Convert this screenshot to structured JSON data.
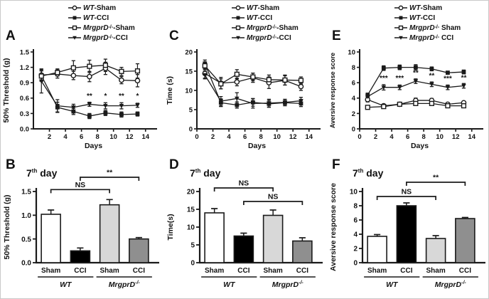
{
  "styles": {
    "axis_color": "#1a1a1a",
    "text_color": "#111111",
    "background": "#ffffff"
  },
  "chart_data": [
    {
      "id": "A",
      "panel_label": "A",
      "type": "line",
      "xlabel": "Days",
      "ylabel": "50% Threshold (g)",
      "xlim": [
        0,
        15
      ],
      "ylim": [
        0,
        1.5
      ],
      "xticks": [
        2,
        4,
        6,
        8,
        10,
        12,
        14
      ],
      "yticks": [
        0,
        0.3,
        0.6,
        0.9,
        1.2,
        1.5
      ],
      "ytick_labels": [
        "0.0",
        "0.3",
        "0.6",
        "0.9",
        "1.2",
        "1.5"
      ],
      "x": [
        1,
        3,
        5,
        7,
        9,
        11,
        13
      ],
      "legend": [
        {
          "gene": "WT",
          "sup": "",
          "sep": "-",
          "label": "Sham",
          "marker": "circle-open"
        },
        {
          "gene": "WT",
          "sup": "",
          "sep": "-",
          "label": "CCI",
          "marker": "square-filled"
        },
        {
          "gene": "MrgprD",
          "sup": "-/-",
          "sep": "-",
          "label": "Sham",
          "marker": "square-open"
        },
        {
          "gene": "MrgprD",
          "sup": "-/-",
          "sep": "-",
          "label": "CCI",
          "marker": "triangle-filled"
        }
      ],
      "series": [
        {
          "name": "WT-Sham",
          "marker": "circle-open",
          "values": [
            1.05,
            1.07,
            1.04,
            1.02,
            1.18,
            0.95,
            0.94
          ],
          "errors": [
            0.12,
            0.08,
            0.08,
            0.1,
            0.12,
            0.07,
            0.12
          ]
        },
        {
          "name": "WT-CCI",
          "marker": "square-filled",
          "values": [
            1.04,
            0.42,
            0.34,
            0.25,
            0.31,
            0.28,
            0.29
          ],
          "errors": [
            0.1,
            0.1,
            0.06,
            0.05,
            0.05,
            0.05,
            0.04
          ]
        },
        {
          "name": "MrgprD-/--Sham",
          "marker": "square-open",
          "values": [
            1.03,
            1.1,
            1.19,
            1.22,
            1.24,
            1.12,
            1.13
          ],
          "errors": [
            0.1,
            0.07,
            0.14,
            0.12,
            0.12,
            0.08,
            0.14
          ]
        },
        {
          "name": "MrgprD-/--CCI",
          "marker": "triangle-filled",
          "values": [
            0.93,
            0.45,
            0.42,
            0.48,
            0.45,
            0.45,
            0.46
          ],
          "errors": [
            0.23,
            0.12,
            0.06,
            0.04,
            0.06,
            0.06,
            0.04
          ]
        }
      ],
      "annotations": [
        {
          "x": 7,
          "y": 0.6,
          "text": "**"
        },
        {
          "x": 9,
          "y": 0.6,
          "text": "*"
        },
        {
          "x": 11,
          "y": 0.6,
          "text": "**"
        },
        {
          "x": 13,
          "y": 0.6,
          "text": "*"
        }
      ]
    },
    {
      "id": "C",
      "panel_label": "C",
      "type": "line",
      "xlabel": "Days",
      "ylabel": "Time (s)",
      "xlim": [
        0,
        15
      ],
      "ylim": [
        0,
        20
      ],
      "xticks": [
        0,
        2,
        4,
        6,
        8,
        10,
        12,
        14
      ],
      "yticks": [
        0,
        5,
        10,
        15,
        20
      ],
      "ytick_labels": [
        "0",
        "5",
        "10",
        "15",
        "20"
      ],
      "x": [
        1,
        3,
        5,
        7,
        9,
        11,
        13
      ],
      "legend": [
        {
          "gene": "WT",
          "sup": "",
          "sep": "-",
          "label": "Sham",
          "marker": "circle-open"
        },
        {
          "gene": "WT",
          "sup": "",
          "sep": "-",
          "label": "CCI",
          "marker": "square-filled"
        },
        {
          "gene": "MrgprD",
          "sup": "-/-",
          "sep": "-",
          "label": "Sham",
          "marker": "square-open"
        },
        {
          "gene": "MrgprD",
          "sup": "-/-",
          "sep": "-",
          "label": "CCI",
          "marker": "triangle-filled"
        }
      ],
      "series": [
        {
          "name": "WT-Sham",
          "marker": "circle-open",
          "values": [
            14.4,
            11.9,
            12.2,
            13.3,
            12.0,
            12.6,
            11.0
          ],
          "errors": [
            1.2,
            1.5,
            1.0,
            1.2,
            1.5,
            1.2,
            1.0
          ]
        },
        {
          "name": "WT-CCI",
          "marker": "square-filled",
          "values": [
            17.0,
            6.8,
            6.2,
            6.9,
            6.5,
            6.8,
            6.6
          ],
          "errors": [
            0.9,
            1.0,
            0.8,
            1.0,
            0.9,
            0.8,
            0.8
          ]
        },
        {
          "name": "MrgprD-/--Sham",
          "marker": "square-open",
          "values": [
            16.4,
            11.7,
            14.2,
            13.5,
            12.8,
            12.7,
            12.6
          ],
          "errors": [
            1.0,
            1.3,
            1.2,
            1.0,
            1.2,
            1.3,
            0.9
          ]
        },
        {
          "name": "MrgprD-/--CCI",
          "marker": "triangle-filled",
          "values": [
            14.0,
            7.2,
            7.9,
            6.6,
            6.7,
            6.9,
            7.3
          ],
          "errors": [
            1.0,
            1.2,
            1.5,
            1.2,
            1.0,
            0.8,
            0.9
          ]
        }
      ],
      "annotations": []
    },
    {
      "id": "E",
      "panel_label": "E",
      "type": "line",
      "xlabel": "Days",
      "ylabel": "Aversive response score",
      "xlim": [
        0,
        15
      ],
      "ylim": [
        0,
        10
      ],
      "xticks": [
        0,
        2,
        4,
        6,
        8,
        10,
        12,
        14
      ],
      "yticks": [
        0,
        2,
        4,
        6,
        8,
        10
      ],
      "ytick_labels": [
        "0",
        "2",
        "4",
        "6",
        "8",
        "10"
      ],
      "x": [
        1,
        3,
        5,
        7,
        9,
        11,
        13
      ],
      "legend": [
        {
          "gene": "WT",
          "sup": "",
          "sep": "-",
          "label": "Sham",
          "marker": "circle-open"
        },
        {
          "gene": "WT",
          "sup": "",
          "sep": "-",
          "label": "CCI",
          "marker": "square-filled"
        },
        {
          "gene": "MrgprD",
          "sup": "-/-",
          "sep": " ",
          "label": "Sham",
          "marker": "square-open"
        },
        {
          "gene": "MrgprD",
          "sup": "-/-",
          "sep": " ",
          "label": "CCI",
          "marker": "triangle-filled"
        }
      ],
      "series": [
        {
          "name": "WT-Sham",
          "marker": "circle-open",
          "values": [
            3.8,
            3.0,
            3.2,
            3.7,
            3.7,
            3.2,
            3.4
          ],
          "errors": [
            0.3,
            0.2,
            0.2,
            0.3,
            0.25,
            0.2,
            0.2
          ]
        },
        {
          "name": "WT-CCI",
          "marker": "square-filled",
          "values": [
            4.4,
            7.9,
            8.0,
            8.0,
            7.8,
            7.3,
            7.4
          ],
          "errors": [
            0.25,
            0.3,
            0.3,
            0.35,
            0.25,
            0.2,
            0.25
          ]
        },
        {
          "name": "MrgprD-/- Sham",
          "marker": "square-open",
          "values": [
            2.8,
            2.9,
            3.2,
            3.3,
            3.3,
            3.0,
            3.0
          ],
          "errors": [
            0.15,
            0.2,
            0.2,
            0.25,
            0.2,
            0.2,
            0.2
          ]
        },
        {
          "name": "MrgprD-/- CCI",
          "marker": "triangle-filled",
          "values": [
            4.2,
            5.4,
            5.4,
            6.2,
            5.8,
            5.4,
            5.6
          ],
          "errors": [
            0.3,
            0.35,
            0.3,
            0.3,
            0.3,
            0.3,
            0.3
          ]
        }
      ],
      "annotations": [
        {
          "x": 3,
          "y": 6.3,
          "text": "***"
        },
        {
          "x": 5,
          "y": 6.3,
          "text": "***"
        },
        {
          "x": 7,
          "y": 7.0,
          "text": "**"
        },
        {
          "x": 9,
          "y": 6.6,
          "text": "**"
        },
        {
          "x": 11,
          "y": 6.25,
          "text": "***"
        },
        {
          "x": 13,
          "y": 6.35,
          "text": "**"
        }
      ]
    },
    {
      "id": "B",
      "panel_label": "B",
      "type": "bar",
      "title_num": "7",
      "title_sup": "th",
      "title_rest": " day",
      "ylabel": "50% Threshold (g)",
      "ylim": [
        0,
        1.5
      ],
      "yticks": [
        0,
        0.5,
        1.0,
        1.5
      ],
      "ytick_labels": [
        "0.0",
        "0.5",
        "1.0",
        "1.5"
      ],
      "categories": [
        "Sham",
        "CCI",
        "Sham",
        "CCI"
      ],
      "groups": [
        {
          "gene": "WT",
          "sup": ""
        },
        {
          "gene": "MrgprD",
          "sup": "-/-"
        }
      ],
      "values": [
        1.02,
        0.25,
        1.22,
        0.5
      ],
      "errors": [
        0.09,
        0.06,
        0.11,
        0.03
      ],
      "bar_colors": [
        "#ffffff",
        "#000000",
        "#d8d8d8",
        "#8f8f8f"
      ],
      "brackets": [
        {
          "from": 0,
          "to": 2,
          "label": "NS",
          "y": 1.54
        },
        {
          "from": 1,
          "to": 3,
          "label": "**",
          "y": 1.8
        }
      ]
    },
    {
      "id": "D",
      "panel_label": "D",
      "type": "bar",
      "title_num": "7",
      "title_sup": "th",
      "title_rest": " day",
      "ylabel": "Time(s)",
      "ylim": [
        0,
        20
      ],
      "yticks": [
        0,
        5,
        10,
        15,
        20
      ],
      "ytick_labels": [
        "0",
        "5",
        "10",
        "15",
        "20"
      ],
      "categories": [
        "Sham",
        "CCI",
        "Sham",
        "CCI"
      ],
      "groups": [
        {
          "gene": "WT",
          "sup": ""
        },
        {
          "gene": "MrgprD",
          "sup": "-/-"
        }
      ],
      "values": [
        14.0,
        7.5,
        13.3,
        6.1
      ],
      "errors": [
        1.2,
        0.8,
        1.5,
        0.9
      ],
      "bar_colors": [
        "#ffffff",
        "#000000",
        "#d8d8d8",
        "#8f8f8f"
      ],
      "brackets": [
        {
          "from": 0,
          "to": 2,
          "label": "NS",
          "y": 21.0
        },
        {
          "from": 1,
          "to": 3,
          "label": "NS",
          "y": 17.2
        }
      ]
    },
    {
      "id": "F",
      "panel_label": "F",
      "type": "bar",
      "title_num": "7",
      "title_sup": "th",
      "title_rest": " day",
      "ylabel": "Aversive response score",
      "ylim": [
        0,
        10
      ],
      "yticks": [
        0,
        2,
        4,
        6,
        8,
        10
      ],
      "ytick_labels": [
        "0",
        "2",
        "4",
        "6",
        "8",
        "10"
      ],
      "categories": [
        "Sham",
        "CCI",
        "Sham",
        "CCI"
      ],
      "groups": [
        {
          "gene": "WT",
          "sup": ""
        },
        {
          "gene": "MrgprD",
          "sup": "-/-"
        }
      ],
      "values": [
        3.7,
        8.0,
        3.4,
        6.2
      ],
      "errors": [
        0.25,
        0.4,
        0.4,
        0.15
      ],
      "bar_colors": [
        "#ffffff",
        "#000000",
        "#d8d8d8",
        "#8f8f8f"
      ],
      "brackets": [
        {
          "from": 0,
          "to": 2,
          "label": "NS",
          "y": 9.3
        },
        {
          "from": 1,
          "to": 3,
          "label": "**",
          "y": 11.3
        }
      ]
    }
  ]
}
